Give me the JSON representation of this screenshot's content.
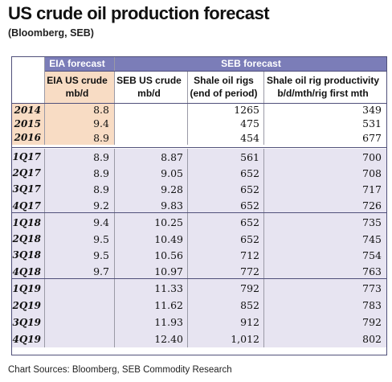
{
  "title": "US crude oil production forecast",
  "subtitle": "(Bloomberg, SEB)",
  "section_headers": {
    "eia": "EIA forecast",
    "seb": "SEB forecast"
  },
  "column_headers": [
    {
      "line1": "EIA US crude",
      "line2": "mb/d"
    },
    {
      "line1": "SEB US crude",
      "line2": "mb/d"
    },
    {
      "line1": "Shale oil rigs",
      "line2": "(end of period)"
    },
    {
      "line1": "Shale oil rig productivity",
      "line2": "b/d/mth/rig first mth"
    }
  ],
  "rows": [
    {
      "period": "2014",
      "eia": "8.8",
      "seb": "",
      "rigs": "1265",
      "productivity": "349"
    },
    {
      "period": "2015",
      "eia": "9.4",
      "seb": "",
      "rigs": "475",
      "productivity": "531"
    },
    {
      "period": "2016",
      "eia": "8.9",
      "seb": "",
      "rigs": "454",
      "productivity": "677"
    },
    {
      "period": "1Q17",
      "eia": "8.9",
      "seb": "8.87",
      "rigs": "561",
      "productivity": "700"
    },
    {
      "period": "2Q17",
      "eia": "8.9",
      "seb": "9.05",
      "rigs": "652",
      "productivity": "708"
    },
    {
      "period": "3Q17",
      "eia": "8.9",
      "seb": "9.28",
      "rigs": "652",
      "productivity": "717"
    },
    {
      "period": "4Q17",
      "eia": "9.2",
      "seb": "9.83",
      "rigs": "652",
      "productivity": "726"
    },
    {
      "period": "1Q18",
      "eia": "9.4",
      "seb": "10.25",
      "rigs": "652",
      "productivity": "735"
    },
    {
      "period": "2Q18",
      "eia": "9.5",
      "seb": "10.49",
      "rigs": "652",
      "productivity": "745"
    },
    {
      "period": "3Q18",
      "eia": "9.5",
      "seb": "10.56",
      "rigs": "712",
      "productivity": "754"
    },
    {
      "period": "4Q18",
      "eia": "9.7",
      "seb": "10.97",
      "rigs": "772",
      "productivity": "763"
    },
    {
      "period": "1Q19",
      "eia": "",
      "seb": "11.33",
      "rigs": "792",
      "productivity": "773"
    },
    {
      "period": "2Q19",
      "eia": "",
      "seb": "11.62",
      "rigs": "852",
      "productivity": "783"
    },
    {
      "period": "3Q19",
      "eia": "",
      "seb": "11.93",
      "rigs": "912",
      "productivity": "792"
    },
    {
      "period": "4Q19",
      "eia": "",
      "seb": "12.40",
      "rigs": "1,012",
      "productivity": "802"
    }
  ],
  "colors": {
    "header": "#7b7db8",
    "lavender": "#e7e4f1",
    "peach": "#f8dcc4"
  },
  "footer": "Chart Sources: Bloomberg, SEB Commodity Research"
}
